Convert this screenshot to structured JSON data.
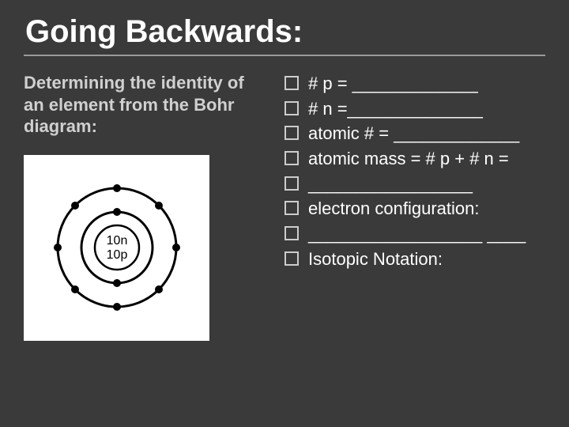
{
  "title": "Going Backwards:",
  "subtitle": "Determining  the identity of an element from the Bohr diagram:",
  "bullets": [
    "# p =  _____________",
    "# n =______________",
    "atomic # = _____________",
    "atomic mass = # p + # n =",
    "_________________",
    "electron configuration:",
    "__________________ ____",
    "Isotopic Notation:"
  ],
  "diagram": {
    "background": "#ffffff",
    "stroke": "#000000",
    "nucleus_labels": [
      "10n",
      "10p"
    ],
    "shells": [
      {
        "radius": 45,
        "electrons": 2,
        "positions": [
          [
            0,
            -45
          ],
          [
            0,
            45
          ]
        ]
      },
      {
        "radius": 75,
        "electrons": 8,
        "positions": [
          [
            0,
            -75
          ],
          [
            53,
            -53
          ],
          [
            75,
            0
          ],
          [
            53,
            53
          ],
          [
            0,
            75
          ],
          [
            -53,
            53
          ],
          [
            -75,
            0
          ],
          [
            -53,
            -53
          ]
        ]
      }
    ],
    "electron_radius": 5,
    "nucleus_radius": 28
  },
  "colors": {
    "slide_bg": "#3a3a3a",
    "text": "#ffffff",
    "subtitle": "#d0d0d0",
    "rule": "#999999",
    "checkbox_border": "#cccccc"
  },
  "fonts": {
    "title_size_pt": 30,
    "subtitle_size_pt": 17,
    "bullet_size_pt": 17
  }
}
